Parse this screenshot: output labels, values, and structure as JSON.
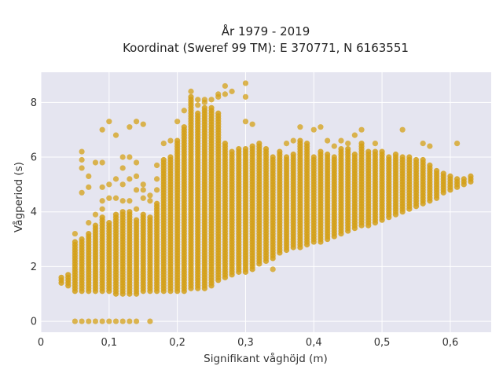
{
  "chart_data": {
    "type": "scatter",
    "title_lines": [
      "År 1979 - 2019",
      "Koordinat (Sweref 99 TM): E 370771, N 6163551"
    ],
    "xlabel": "Signifikant våghöjd (m)",
    "ylabel": "Vågperiod (s)",
    "xlim": [
      0,
      0.66
    ],
    "ylim": [
      -0.4,
      9.1
    ],
    "xticks": [
      0,
      0.1,
      0.2,
      0.3,
      0.4,
      0.5,
      0.6
    ],
    "xtick_labels": [
      "0",
      "0,1",
      "0,2",
      "0,3",
      "0,4",
      "0,5",
      "0,6"
    ],
    "yticks": [
      0,
      2,
      4,
      6,
      8
    ],
    "ytick_labels": [
      "0",
      "2",
      "4",
      "6",
      "8"
    ],
    "grid": true,
    "legend": "none",
    "colors": {
      "background": "#e5e5f0",
      "grid": "#ffffff",
      "marker": "#d4a017"
    },
    "x_step": 0.01,
    "columns": [
      {
        "x": 0.03,
        "low": 1.4,
        "high": 1.6,
        "extra": []
      },
      {
        "x": 0.04,
        "low": 1.3,
        "high": 1.7,
        "extra": []
      },
      {
        "x": 0.05,
        "low": 1.1,
        "high": 2.9,
        "extra": [
          0.0,
          3.2
        ]
      },
      {
        "x": 0.06,
        "low": 1.1,
        "high": 3.0,
        "extra": [
          0.0,
          4.7,
          5.6,
          5.9,
          6.2
        ]
      },
      {
        "x": 0.07,
        "low": 1.1,
        "high": 3.2,
        "extra": [
          0.0,
          3.6,
          4.9,
          5.3
        ]
      },
      {
        "x": 0.08,
        "low": 1.1,
        "high": 3.5,
        "extra": [
          0.0,
          3.9,
          5.8
        ]
      },
      {
        "x": 0.09,
        "low": 1.1,
        "high": 3.8,
        "extra": [
          0.0,
          4.1,
          4.4,
          4.9,
          5.8,
          7.0
        ]
      },
      {
        "x": 0.1,
        "low": 1.1,
        "high": 3.6,
        "extra": [
          0.0,
          4.5,
          5.0,
          7.3
        ]
      },
      {
        "x": 0.11,
        "low": 1.0,
        "high": 3.9,
        "extra": [
          0.0,
          4.5,
          5.2,
          6.8
        ]
      },
      {
        "x": 0.12,
        "low": 1.0,
        "high": 4.0,
        "extra": [
          0.0,
          4.4,
          5.0,
          5.6,
          6.0
        ]
      },
      {
        "x": 0.13,
        "low": 1.0,
        "high": 4.0,
        "extra": [
          0.0,
          4.4,
          5.2,
          6.0,
          7.1
        ]
      },
      {
        "x": 0.14,
        "low": 1.0,
        "high": 3.7,
        "extra": [
          0.0,
          4.1,
          4.8,
          5.3,
          5.8,
          7.3
        ]
      },
      {
        "x": 0.15,
        "low": 1.1,
        "high": 3.9,
        "extra": [
          4.5,
          4.8,
          5.0,
          7.2
        ]
      },
      {
        "x": 0.16,
        "low": 1.1,
        "high": 3.8,
        "extra": [
          0.0,
          4.4,
          4.6
        ]
      },
      {
        "x": 0.17,
        "low": 1.1,
        "high": 4.3,
        "extra": [
          4.8,
          5.2,
          5.7
        ]
      },
      {
        "x": 0.18,
        "low": 1.1,
        "high": 5.9,
        "extra": [
          6.5
        ]
      },
      {
        "x": 0.19,
        "low": 1.1,
        "high": 6.0,
        "extra": [
          6.6
        ]
      },
      {
        "x": 0.2,
        "low": 1.1,
        "high": 6.6,
        "extra": [
          7.3
        ]
      },
      {
        "x": 0.21,
        "low": 1.1,
        "high": 7.1,
        "extra": [
          7.7
        ]
      },
      {
        "x": 0.22,
        "low": 1.2,
        "high": 8.2,
        "extra": [
          8.4
        ]
      },
      {
        "x": 0.23,
        "low": 1.2,
        "high": 7.6,
        "extra": [
          7.9,
          8.1
        ]
      },
      {
        "x": 0.24,
        "low": 1.2,
        "high": 7.8,
        "extra": [
          8.0,
          8.1
        ]
      },
      {
        "x": 0.25,
        "low": 1.3,
        "high": 7.8,
        "extra": [
          8.1
        ]
      },
      {
        "x": 0.26,
        "low": 1.5,
        "high": 7.6,
        "extra": [
          8.2,
          8.3
        ]
      },
      {
        "x": 0.27,
        "low": 1.6,
        "high": 6.5,
        "extra": [
          8.3,
          8.6
        ]
      },
      {
        "x": 0.28,
        "low": 1.7,
        "high": 6.2,
        "extra": [
          8.4
        ]
      },
      {
        "x": 0.29,
        "low": 1.8,
        "high": 6.3,
        "extra": []
      },
      {
        "x": 0.3,
        "low": 1.8,
        "high": 6.3,
        "extra": [
          7.3,
          8.2,
          8.7
        ]
      },
      {
        "x": 0.31,
        "low": 1.9,
        "high": 6.4,
        "extra": [
          7.2
        ]
      },
      {
        "x": 0.32,
        "low": 2.1,
        "high": 6.5,
        "extra": []
      },
      {
        "x": 0.33,
        "low": 2.2,
        "high": 6.3,
        "extra": []
      },
      {
        "x": 0.34,
        "low": 2.3,
        "high": 6.0,
        "extra": [
          1.9
        ]
      },
      {
        "x": 0.35,
        "low": 2.5,
        "high": 6.2,
        "extra": []
      },
      {
        "x": 0.36,
        "low": 2.6,
        "high": 6.0,
        "extra": [
          6.5
        ]
      },
      {
        "x": 0.37,
        "low": 2.7,
        "high": 6.1,
        "extra": [
          6.6
        ]
      },
      {
        "x": 0.38,
        "low": 2.7,
        "high": 6.6,
        "extra": [
          7.1
        ]
      },
      {
        "x": 0.39,
        "low": 2.8,
        "high": 6.5,
        "extra": []
      },
      {
        "x": 0.4,
        "low": 2.9,
        "high": 6.0,
        "extra": [
          7.0
        ]
      },
      {
        "x": 0.41,
        "low": 2.9,
        "high": 6.2,
        "extra": [
          7.1
        ]
      },
      {
        "x": 0.42,
        "low": 3.0,
        "high": 6.1,
        "extra": [
          6.6
        ]
      },
      {
        "x": 0.43,
        "low": 3.1,
        "high": 6.0,
        "extra": [
          6.4
        ]
      },
      {
        "x": 0.44,
        "low": 3.2,
        "high": 6.3,
        "extra": [
          6.6
        ]
      },
      {
        "x": 0.45,
        "low": 3.3,
        "high": 6.3,
        "extra": [
          6.5
        ]
      },
      {
        "x": 0.46,
        "low": 3.4,
        "high": 6.1,
        "extra": [
          6.8
        ]
      },
      {
        "x": 0.47,
        "low": 3.5,
        "high": 6.5,
        "extra": [
          7.0
        ]
      },
      {
        "x": 0.48,
        "low": 3.5,
        "high": 6.2,
        "extra": []
      },
      {
        "x": 0.49,
        "low": 3.6,
        "high": 6.2,
        "extra": [
          6.5
        ]
      },
      {
        "x": 0.5,
        "low": 3.7,
        "high": 6.2,
        "extra": []
      },
      {
        "x": 0.51,
        "low": 3.8,
        "high": 6.0,
        "extra": []
      },
      {
        "x": 0.52,
        "low": 3.9,
        "high": 6.1,
        "extra": []
      },
      {
        "x": 0.53,
        "low": 4.0,
        "high": 6.0,
        "extra": [
          7.0
        ]
      },
      {
        "x": 0.54,
        "low": 4.1,
        "high": 6.0,
        "extra": []
      },
      {
        "x": 0.55,
        "low": 4.2,
        "high": 5.9,
        "extra": []
      },
      {
        "x": 0.56,
        "low": 4.3,
        "high": 5.9,
        "extra": [
          6.5
        ]
      },
      {
        "x": 0.57,
        "low": 4.4,
        "high": 5.7,
        "extra": [
          6.4
        ]
      },
      {
        "x": 0.58,
        "low": 4.5,
        "high": 5.5,
        "extra": []
      },
      {
        "x": 0.59,
        "low": 4.7,
        "high": 5.4,
        "extra": []
      },
      {
        "x": 0.6,
        "low": 4.8,
        "high": 5.3,
        "extra": []
      },
      {
        "x": 0.61,
        "low": 4.9,
        "high": 5.2,
        "extra": [
          6.5
        ]
      },
      {
        "x": 0.62,
        "low": 5.0,
        "high": 5.2,
        "extra": []
      },
      {
        "x": 0.63,
        "low": 5.1,
        "high": 5.3,
        "extra": []
      }
    ],
    "y_point_step": 0.1
  }
}
